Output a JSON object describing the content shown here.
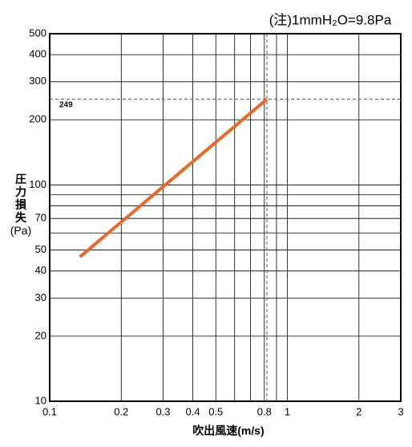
{
  "chart_data": {
    "type": "line",
    "note": "(注)1mmH₂O=9.8Pa",
    "xlabel": "吹出風速(m/s)",
    "ylabel": [
      "圧力損失",
      "(Pa)"
    ],
    "log_x": true,
    "log_y": true,
    "grid": true,
    "xlim": [
      0.1,
      3
    ],
    "xticks": [
      0.1,
      0.2,
      0.3,
      0.4,
      0.5,
      0.8,
      1,
      2,
      3
    ],
    "xminor": [
      0.6,
      0.7,
      0.9
    ],
    "ylim": [
      10,
      500
    ],
    "yticks": [
      10,
      20,
      30,
      40,
      50,
      70,
      100,
      200,
      300,
      400,
      500
    ],
    "yminor": [
      60,
      80,
      90
    ],
    "series": [
      {
        "color": "#e8692a",
        "x": [
          0.134,
          0.82
        ],
        "values": [
          46.5,
          249
        ]
      }
    ],
    "ref_x": 0.82,
    "ref_y": 249
  }
}
